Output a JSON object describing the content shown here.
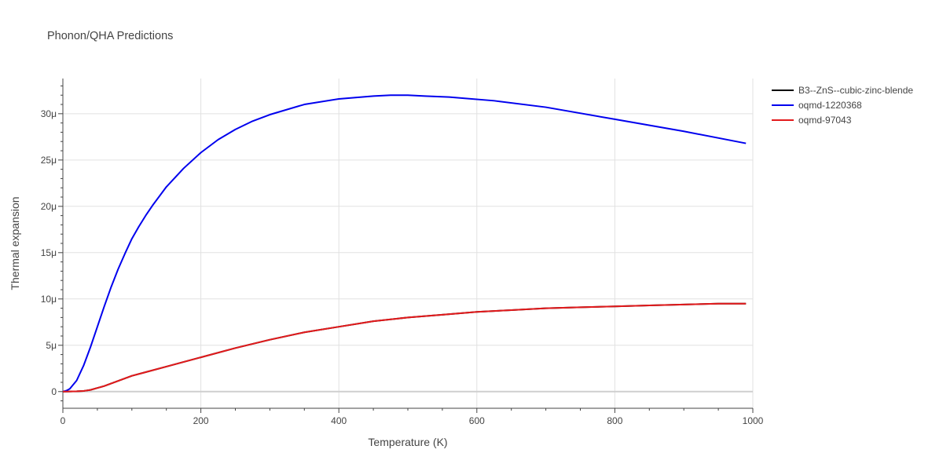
{
  "chart_data": {
    "type": "line",
    "title": "Phonon/QHA Predictions",
    "xlabel": "Temperature (K)",
    "ylabel": "Thermal expansion",
    "xlim": [
      0,
      1000
    ],
    "ylim": [
      -1.8e-06,
      3.38e-05
    ],
    "x_ticks": [
      0,
      200,
      400,
      600,
      800,
      1000
    ],
    "x_tick_labels": [
      "0",
      "200",
      "400",
      "600",
      "800",
      "1000"
    ],
    "y_ticks": [
      0,
      5e-06,
      1e-05,
      1.5e-05,
      2e-05,
      2.5e-05,
      3e-05
    ],
    "y_tick_labels": [
      "0",
      "5μ",
      "10μ",
      "15μ",
      "20μ",
      "25μ",
      "30μ"
    ],
    "grid": true,
    "legend_position": "right",
    "series": [
      {
        "name": "B3--ZnS--cubic-zinc-blende",
        "color": "#000000",
        "x": [
          0,
          10,
          20,
          30,
          40,
          60,
          80,
          100,
          120,
          150,
          200,
          250,
          300,
          350,
          400,
          450,
          500,
          550,
          600,
          650,
          700,
          750,
          800,
          850,
          900,
          950,
          990
        ],
        "y": [
          0,
          1e-08,
          3e-08,
          7e-08,
          1.8e-07,
          6e-07,
          1.15e-06,
          1.7e-06,
          2.1e-06,
          2.7e-06,
          3.7e-06,
          4.7e-06,
          5.6e-06,
          6.4e-06,
          7e-06,
          7.6e-06,
          8e-06,
          8.3e-06,
          8.6e-06,
          8.8e-06,
          9e-06,
          9.1e-06,
          9.2e-06,
          9.3e-06,
          9.4e-06,
          9.5e-06,
          9.5e-06
        ]
      },
      {
        "name": "oqmd-1220368",
        "color": "#0000ee",
        "x": [
          0,
          5,
          10,
          20,
          30,
          40,
          50,
          60,
          70,
          80,
          90,
          100,
          110,
          120,
          130,
          150,
          175,
          200,
          225,
          250,
          275,
          300,
          350,
          400,
          450,
          475,
          500,
          525,
          560,
          625,
          700,
          800,
          900,
          990
        ],
        "y": [
          0,
          1e-07,
          3e-07,
          1.2e-06,
          2.8e-06,
          4.8e-06,
          7e-06,
          9.2e-06,
          1.13e-05,
          1.32e-05,
          1.49e-05,
          1.65e-05,
          1.78e-05,
          1.9e-05,
          2.01e-05,
          2.21e-05,
          2.41e-05,
          2.58e-05,
          2.72e-05,
          2.83e-05,
          2.92e-05,
          2.99e-05,
          3.1e-05,
          3.16e-05,
          3.19e-05,
          3.2e-05,
          3.2e-05,
          3.19e-05,
          3.18e-05,
          3.14e-05,
          3.07e-05,
          2.94e-05,
          2.81e-05,
          2.68e-05
        ]
      },
      {
        "name": "oqmd-97043",
        "color": "#e31a1c",
        "x": [
          0,
          10,
          20,
          30,
          40,
          60,
          80,
          100,
          120,
          150,
          200,
          250,
          300,
          350,
          400,
          450,
          500,
          550,
          600,
          650,
          700,
          750,
          800,
          850,
          900,
          950,
          990
        ],
        "y": [
          0,
          1e-08,
          3e-08,
          7e-08,
          1.8e-07,
          6e-07,
          1.15e-06,
          1.7e-06,
          2.1e-06,
          2.7e-06,
          3.7e-06,
          4.7e-06,
          5.6e-06,
          6.4e-06,
          7e-06,
          7.6e-06,
          8e-06,
          8.3e-06,
          8.6e-06,
          8.8e-06,
          9e-06,
          9.1e-06,
          9.2e-06,
          9.3e-06,
          9.4e-06,
          9.5e-06,
          9.5e-06
        ]
      }
    ]
  }
}
